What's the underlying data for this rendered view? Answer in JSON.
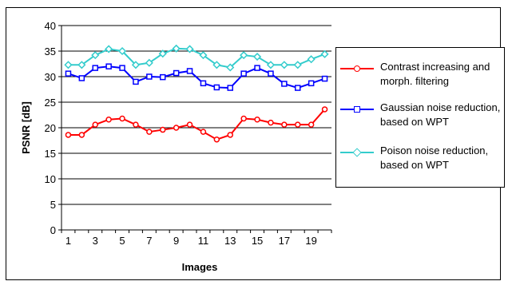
{
  "chart_data": {
    "type": "line",
    "xlabel": "Images",
    "ylabel": "PSNR [dB]",
    "x": [
      1,
      2,
      3,
      4,
      5,
      6,
      7,
      8,
      9,
      10,
      11,
      12,
      13,
      14,
      15,
      16,
      17,
      18,
      19,
      20
    ],
    "x_tick_labels": [
      "1",
      "3",
      "5",
      "7",
      "9",
      "11",
      "13",
      "15",
      "17",
      "19"
    ],
    "y_tick_labels": [
      "0",
      "5",
      "10",
      "15",
      "20",
      "25",
      "30",
      "35",
      "40"
    ],
    "ylim": [
      0,
      40
    ],
    "grid": "horizontal",
    "legend_position": "right",
    "series": [
      {
        "name": "Contrast increasing and morph. filtering",
        "color": "#ff0000",
        "marker": "circle",
        "values": [
          18.6,
          18.6,
          20.6,
          21.6,
          21.8,
          20.6,
          19.2,
          19.6,
          20.0,
          20.6,
          19.2,
          17.7,
          18.6,
          21.8,
          21.6,
          21.0,
          20.6,
          20.6,
          20.6,
          23.6
        ]
      },
      {
        "name": "Gaussian noise reduction, based on WPT",
        "color": "#0000ff",
        "marker": "square",
        "values": [
          30.6,
          29.7,
          31.7,
          32.0,
          31.7,
          29.0,
          30.0,
          29.9,
          30.7,
          31.1,
          28.7,
          27.9,
          27.8,
          30.6,
          31.7,
          30.6,
          28.6,
          27.8,
          28.7,
          29.6
        ]
      },
      {
        "name": "Poison noise reduction, based on  WPT",
        "color": "#33cccc",
        "marker": "diamond",
        "values": [
          32.3,
          32.3,
          34.2,
          35.4,
          35.0,
          32.3,
          32.7,
          34.5,
          35.5,
          35.4,
          34.2,
          32.3,
          31.8,
          34.2,
          33.9,
          32.3,
          32.3,
          32.3,
          33.4,
          34.4
        ]
      }
    ]
  }
}
